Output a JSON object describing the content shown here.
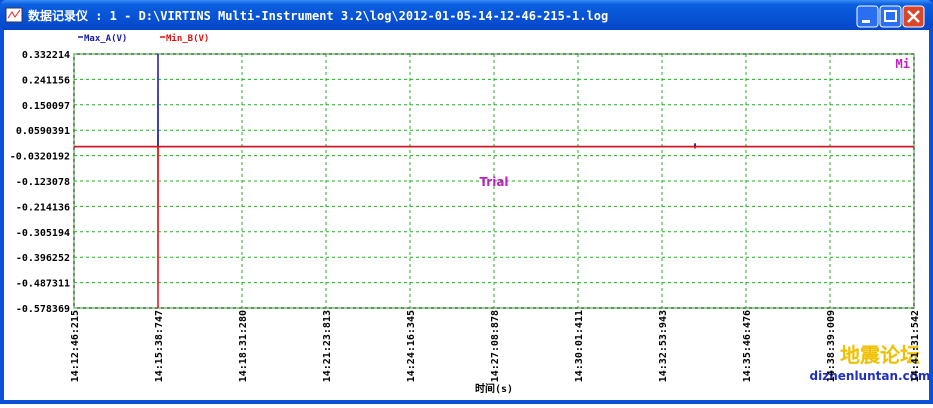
{
  "window": {
    "title": "数据记录仪 : 1 - D:\\VIRTINS Multi-Instrument 3.2\\log\\2012-01-05-14-12-46-215-1.log"
  },
  "watermark": {
    "trial": "Trial",
    "corner": "Mi",
    "site_cn": "地震论坛",
    "site": "dizhenluntan.com"
  },
  "chart_data": {
    "type": "line",
    "x_label": "时间(s)",
    "x": [
      "14:12:46:215",
      "14:15:38:500",
      "14:15:38:747",
      "14:15:39:000",
      "14:34:01:000",
      "14:34:01:800",
      "14:34:02:600",
      "14:41:31:542"
    ],
    "series": [
      {
        "name": "Max_A(V)",
        "color": "#1a1aa8",
        "values": [
          0,
          0,
          0.332214,
          0,
          0,
          0.012,
          0,
          0
        ]
      },
      {
        "name": "Min_B(V)",
        "color": "#e01010",
        "values": [
          0,
          0,
          -0.578369,
          0,
          0,
          -0.006,
          0,
          0
        ]
      }
    ],
    "xlim": [
      "14:12:46:215",
      "14:41:31:542"
    ],
    "xticks": [
      "14:12:46:215",
      "14:15:38:747",
      "14:18:31:280",
      "14:21:23:813",
      "14:24:16:345",
      "14:27:08:878",
      "14:30:01:411",
      "14:32:53:943",
      "14:35:46:476",
      "14:38:39:009",
      "14:41:31:542"
    ],
    "ylim": [
      -0.578369,
      0.332214
    ],
    "yticks": [
      0.332214,
      0.241156,
      0.150097,
      0.0590391,
      -0.0320192,
      -0.123078,
      -0.214136,
      -0.305194,
      -0.396252,
      -0.487311,
      -0.578369
    ],
    "grid": true
  }
}
